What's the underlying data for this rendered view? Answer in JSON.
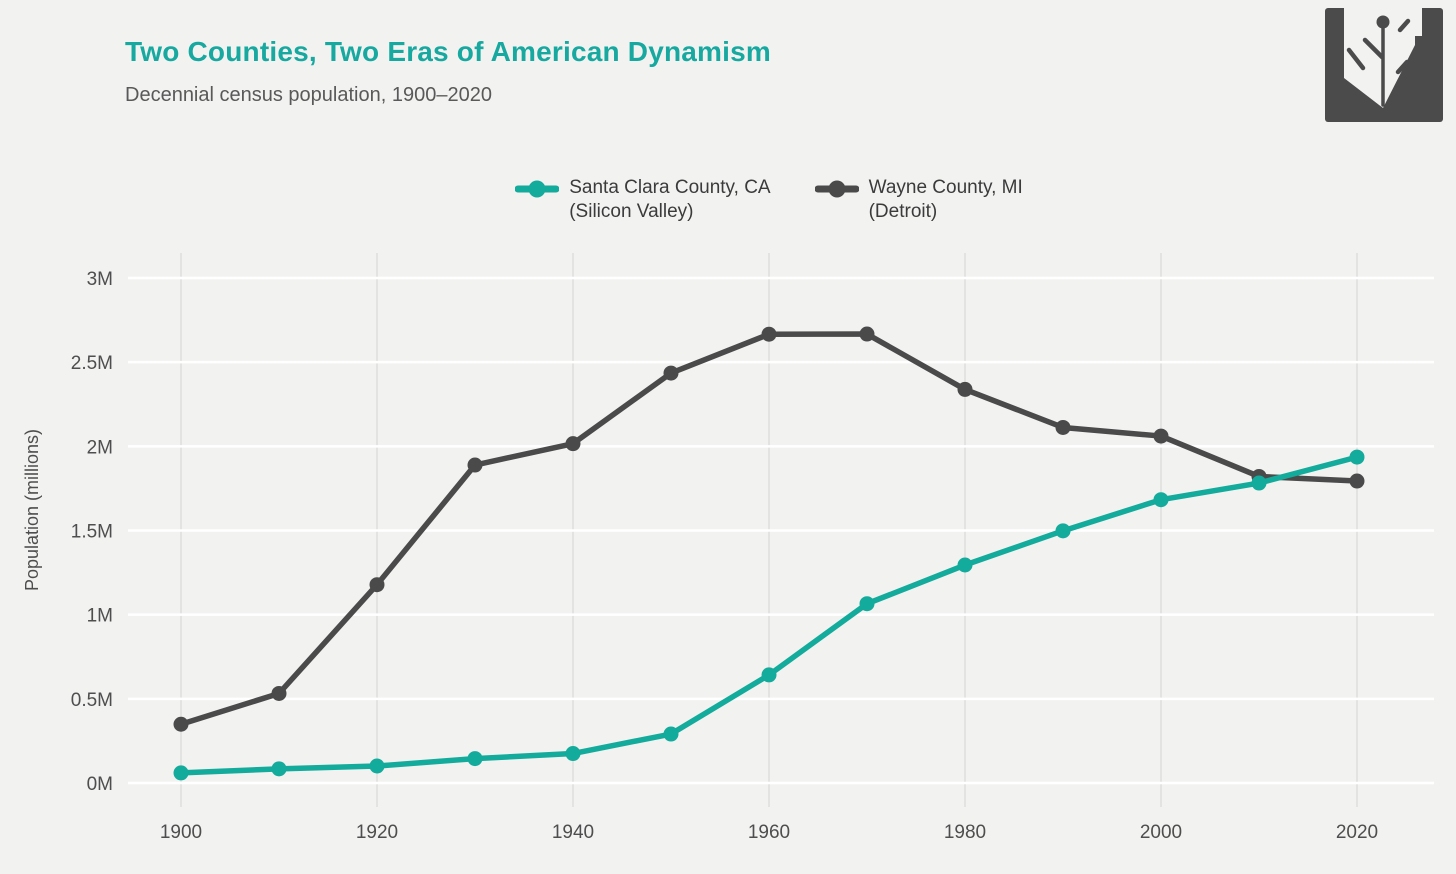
{
  "header": {
    "title": "Two Counties, Two Eras of American Dynamism",
    "subtitle": "Decennial census population, 1900–2020"
  },
  "legend": {
    "items": [
      {
        "line1": "Santa Clara County, CA",
        "line2": "(Silicon Valley)",
        "color": "#13ab9b"
      },
      {
        "line1": "Wayne County, MI",
        "line2": "(Detroit)",
        "color": "#4a4a4a"
      }
    ]
  },
  "chart_data": {
    "type": "line",
    "x": [
      1900,
      1910,
      1920,
      1930,
      1940,
      1950,
      1960,
      1970,
      1980,
      1990,
      2000,
      2010,
      2020
    ],
    "series": [
      {
        "name": "Santa Clara County, CA (Silicon Valley)",
        "color": "#13ab9b",
        "values_millions": [
          0.06,
          0.084,
          0.101,
          0.145,
          0.175,
          0.291,
          0.642,
          1.065,
          1.295,
          1.498,
          1.683,
          1.782,
          1.936
        ]
      },
      {
        "name": "Wayne County, MI (Detroit)",
        "color": "#4a4a4a",
        "values_millions": [
          0.349,
          0.532,
          1.178,
          1.889,
          2.016,
          2.435,
          2.666,
          2.667,
          2.338,
          2.112,
          2.061,
          1.821,
          1.794
        ]
      }
    ],
    "title": "Two Counties, Two Eras of American Dynamism",
    "subtitle": "Decennial census population, 1900–2020",
    "xlabel": "",
    "ylabel": "Population (millions)",
    "xlim": [
      1900,
      2020
    ],
    "ylim": [
      0,
      3
    ],
    "xticks": [
      1900,
      1920,
      1940,
      1960,
      1980,
      2000,
      2020
    ],
    "ytick_values": [
      0,
      0.5,
      1,
      1.5,
      2,
      2.5,
      3
    ],
    "ytick_labels": [
      "0M",
      "0.5M",
      "1M",
      "1.5M",
      "2M",
      "2.5M",
      "3M"
    ],
    "grid": true,
    "legend_position": "top-center"
  },
  "colors": {
    "title": "#17a8a0",
    "subtitle": "#595959",
    "background": "#f2f2f1",
    "hgrid": "#ffffff",
    "vgrid": "#dedede",
    "tick_text": "#4e4e4e",
    "logo": "#4b4b4b"
  }
}
